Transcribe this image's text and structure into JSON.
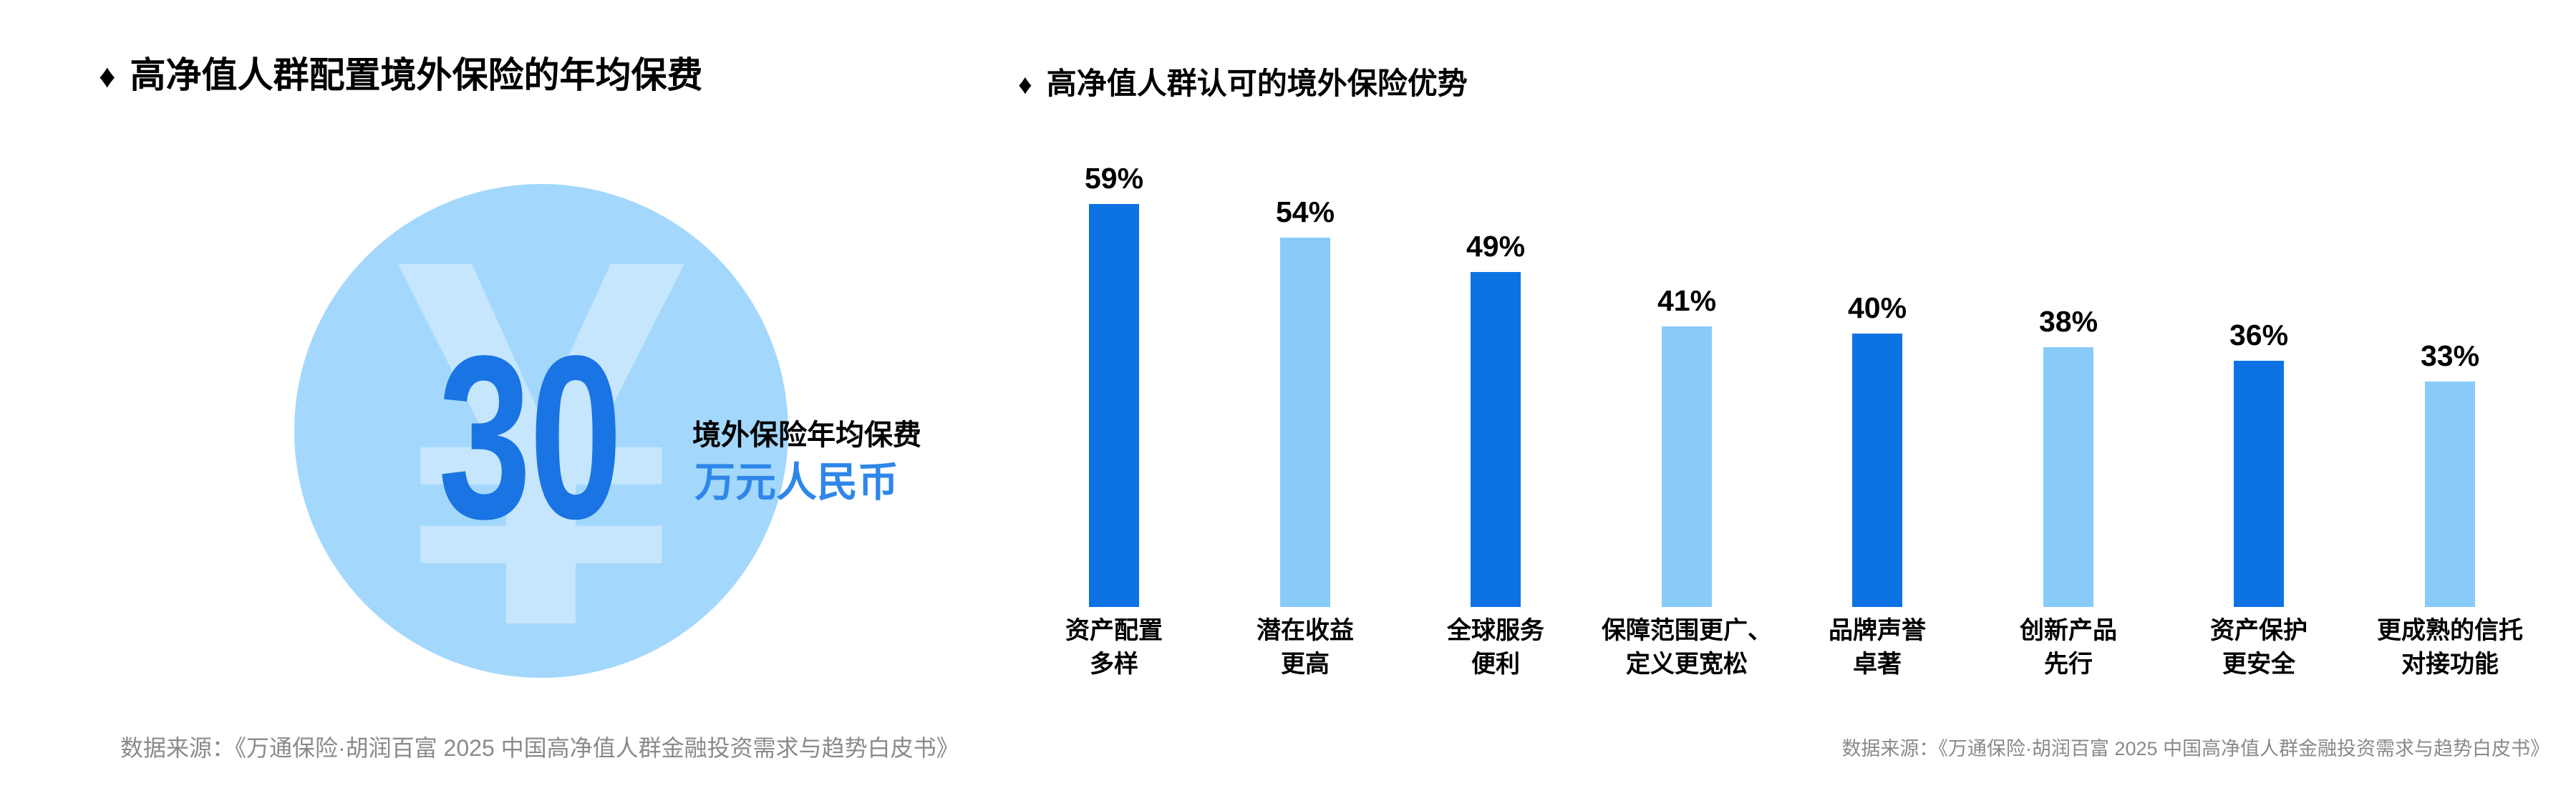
{
  "page": {
    "background": "#FFFFFF"
  },
  "colors": {
    "bar_dark": "#0D73E3",
    "bar_light": "#88CBF9",
    "circle_fill": "#A3D8FC",
    "watermark_blue": "#C6E6FD",
    "number_blue": "#1A74E4",
    "unit_blue": "#2F86E9",
    "label_black": "#000000",
    "source_gray": "#8A8A8A"
  },
  "left_panel": {
    "title_icon": "♦",
    "title_text": "高净值人群配置境外保险的年均保费",
    "source": "数据来源：《万通保险·胡润百富 2025 中国高净值人群金融投资需求与趋势白皮书》"
  },
  "right_panel": {
    "title_icon": "♦",
    "title_text": "高净值人群认可的境外保险优势",
    "source": "数据来源：《万通保险·胡润百富 2025 中国高净值人群金融投资需求与趋势白皮书》"
  },
  "chart_data": [
    {
      "type": "kpi",
      "title": "高净值人群配置境外保险的年均保费",
      "value": 30,
      "value_display": "30",
      "caption": "境外保险年均保费",
      "unit": "万元人民币",
      "currency_symbol": "¥"
    },
    {
      "type": "bar",
      "title": "高净值人群认可的境外保险优势",
      "categories": [
        "资产配置\n多样",
        "潜在收益\n更高",
        "全球服务\n便利",
        "保障范围更广、\n定义更宽松",
        "品牌声誉\n卓著",
        "创新产品\n先行",
        "资产保护\n更安全",
        "更成熟的信托\n对接功能"
      ],
      "values": [
        59,
        54,
        49,
        41,
        40,
        38,
        36,
        33
      ],
      "value_labels": [
        "59%",
        "54%",
        "49%",
        "41%",
        "40%",
        "38%",
        "36%",
        "33%"
      ],
      "bar_colors": [
        "#0D73E3",
        "#88CBF9",
        "#0D73E3",
        "#88CBF9",
        "#0D73E3",
        "#88CBF9",
        "#0D73E3",
        "#88CBF9"
      ],
      "ylim": [
        0,
        62
      ],
      "xlabel": "",
      "ylabel": "",
      "grid": false,
      "legend": "none",
      "value_suffix": "%"
    }
  ]
}
